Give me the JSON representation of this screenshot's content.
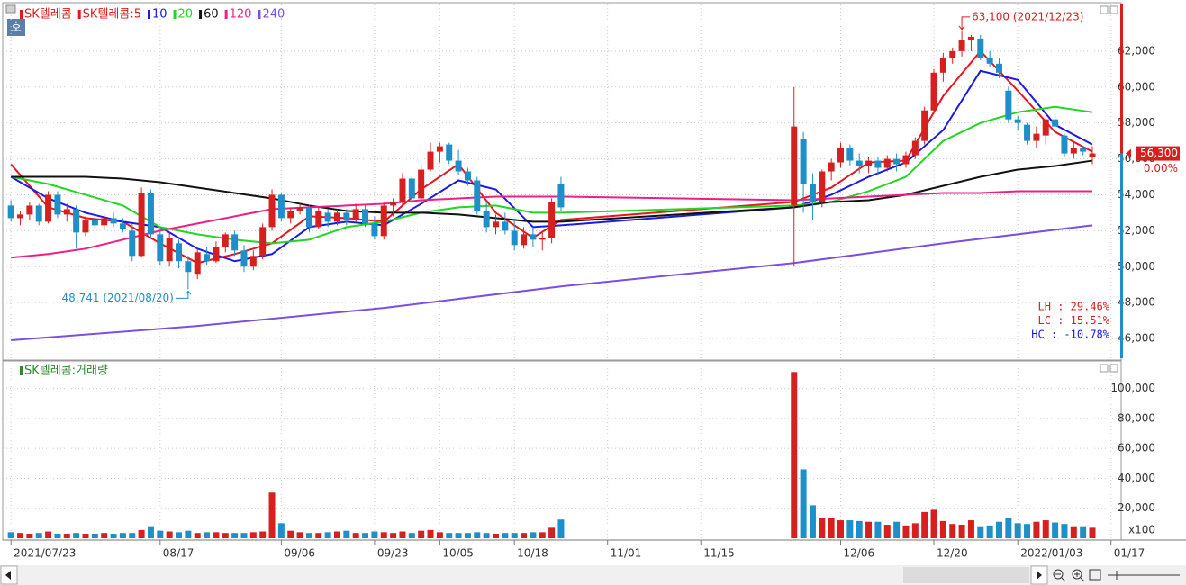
{
  "corner_label": "호",
  "chart_data": [
    {
      "type": "candlestick",
      "name": "SK텔레콤",
      "up_color": "#d62020",
      "down_color": "#1e8fc8",
      "x": [
        0,
        1,
        2,
        3,
        4,
        5,
        6,
        7,
        8,
        9,
        10,
        11,
        12,
        13,
        14,
        15,
        16,
        17,
        18,
        19,
        20,
        21,
        22,
        23,
        24,
        25,
        26,
        27,
        28,
        29,
        30,
        31,
        32,
        33,
        34,
        35,
        36,
        37,
        38,
        39,
        40,
        41,
        42,
        43,
        44,
        45,
        46,
        47,
        48,
        49,
        50,
        51,
        52,
        53,
        54,
        55,
        56,
        57,
        58,
        59,
        84,
        85,
        86,
        87,
        88,
        89,
        90,
        91,
        92,
        93,
        94,
        95,
        96,
        97,
        98,
        99,
        100,
        101,
        102,
        103,
        104,
        105,
        106,
        107,
        108,
        109,
        110,
        111,
        112,
        113,
        114,
        115,
        116
      ],
      "open": [
        53400,
        52700,
        52900,
        53400,
        52500,
        54000,
        52900,
        53200,
        51900,
        52600,
        52300,
        52700,
        52400,
        52000,
        50600,
        54100,
        51800,
        50300,
        51300,
        50300,
        49600,
        50700,
        50300,
        51100,
        51800,
        50900,
        50000,
        50600,
        52200,
        54000,
        52700,
        53100,
        53300,
        52200,
        53000,
        52500,
        53000,
        52600,
        53200,
        52400,
        51700,
        53400,
        53600,
        54900,
        53800,
        55400,
        56400,
        56800,
        55900,
        55300,
        54800,
        53100,
        52200,
        52500,
        52000,
        51200,
        51800,
        51500,
        51600,
        54600,
        53400,
        57100,
        54600,
        53600,
        55300,
        55800,
        56600,
        55900,
        55600,
        55900,
        55500,
        56000,
        55700,
        56200,
        57000,
        58700,
        60800,
        61600,
        62000,
        62600,
        62700,
        61600,
        61300,
        59800,
        58200,
        57900,
        57000,
        57300,
        58200,
        57300,
        56300,
        56600,
        56100
      ],
      "high": [
        53700,
        53100,
        53600,
        53500,
        54200,
        54200,
        53500,
        53400,
        52800,
        53000,
        52900,
        53000,
        52700,
        52400,
        54400,
        54300,
        52100,
        51900,
        51500,
        50600,
        51000,
        51100,
        51400,
        51900,
        52000,
        51200,
        50900,
        52400,
        54300,
        54100,
        53300,
        53500,
        53400,
        53300,
        53200,
        53200,
        53200,
        53500,
        53400,
        52800,
        53600,
        53800,
        55200,
        55000,
        55700,
        56900,
        56900,
        56900,
        56500,
        55500,
        55000,
        53600,
        52900,
        53000,
        52600,
        52200,
        52200,
        52000,
        53800,
        55000,
        60000,
        57500,
        55200,
        55400,
        56000,
        56900,
        56800,
        56300,
        56100,
        56100,
        56200,
        56300,
        56400,
        57200,
        58900,
        61000,
        61900,
        62200,
        63100,
        62900,
        62900,
        62000,
        61600,
        60000,
        58400,
        58000,
        57800,
        58300,
        58500,
        57400,
        56900,
        56700,
        56700
      ],
      "low": [
        52500,
        52300,
        52600,
        52300,
        52400,
        52700,
        52500,
        51000,
        51700,
        52100,
        52000,
        52200,
        51900,
        50300,
        50500,
        51600,
        50100,
        50000,
        49900,
        48741,
        49300,
        50100,
        50200,
        50800,
        50600,
        49700,
        49800,
        50400,
        52000,
        52500,
        52400,
        52900,
        51900,
        52100,
        52200,
        52300,
        52300,
        52500,
        52200,
        51500,
        51500,
        52800,
        53400,
        53500,
        53600,
        55300,
        55800,
        55700,
        55100,
        54500,
        52900,
        51900,
        51800,
        51800,
        50900,
        51000,
        51100,
        50900,
        51300,
        53100,
        50000,
        53000,
        52600,
        53300,
        54800,
        55500,
        55600,
        55200,
        55200,
        55100,
        55300,
        55300,
        55500,
        56000,
        56800,
        58500,
        60300,
        61300,
        61700,
        62000,
        61500,
        61100,
        60500,
        58000,
        57600,
        56800,
        56600,
        56800,
        57500,
        56100,
        56000,
        56200,
        55700
      ],
      "close": [
        52700,
        52900,
        53400,
        52500,
        54000,
        52900,
        53200,
        51900,
        52600,
        52300,
        52700,
        52400,
        52100,
        50600,
        54100,
        51800,
        50300,
        51600,
        50300,
        49700,
        50800,
        50300,
        51100,
        51800,
        50900,
        50000,
        50600,
        52200,
        54000,
        52700,
        53100,
        53300,
        52200,
        53100,
        52500,
        53000,
        52600,
        53200,
        52400,
        51700,
        53400,
        53600,
        54900,
        53800,
        55400,
        56400,
        56700,
        55900,
        55300,
        54800,
        53100,
        52200,
        52500,
        52000,
        51200,
        51800,
        51500,
        51600,
        53600,
        53300,
        57800,
        54600,
        53600,
        55300,
        55800,
        56600,
        55900,
        55600,
        55900,
        55500,
        56000,
        55700,
        56200,
        57000,
        58700,
        60800,
        61600,
        62000,
        62600,
        62800,
        61600,
        61300,
        60800,
        58200,
        58000,
        57000,
        57400,
        58200,
        57800,
        56300,
        56600,
        56400,
        56300
      ],
      "xlim": [
        -0.5,
        118.8
      ],
      "ylim": [
        44900,
        64600
      ],
      "yticks": [
        {
          "value": 46000,
          "label": "46,000"
        },
        {
          "value": 48000,
          "label": "48,000"
        },
        {
          "value": 50000,
          "label": "50,000"
        },
        {
          "value": 52000,
          "label": "52,000"
        },
        {
          "value": 54000,
          "label": "54,000"
        },
        {
          "value": 56000,
          "label": "56,000"
        },
        {
          "value": 58000,
          "label": "58,000"
        },
        {
          "value": 60000,
          "label": "60,000"
        },
        {
          "value": 62000,
          "label": "62,000"
        }
      ],
      "grid": true,
      "series": [
        {
          "name": "SK텔레콤:5",
          "color": "#e8151b",
          "x": [
            0,
            4,
            8,
            12,
            16,
            20,
            24,
            28,
            32,
            36,
            40,
            44,
            48,
            52,
            56,
            59,
            84,
            88,
            92,
            96,
            100,
            104,
            108,
            112,
            116
          ],
          "values": [
            55700,
            53300,
            52700,
            52500,
            51300,
            50200,
            50700,
            51300,
            52800,
            52700,
            52500,
            54300,
            55700,
            53000,
            51600,
            52600,
            53600,
            54400,
            55800,
            55900,
            59500,
            62000,
            59800,
            57500,
            56400
          ]
        },
        {
          "name": "10",
          "color": "#1a1ae6",
          "x": [
            0,
            4,
            8,
            12,
            16,
            20,
            24,
            28,
            32,
            36,
            40,
            44,
            48,
            52,
            56,
            59,
            84,
            88,
            92,
            96,
            100,
            104,
            108,
            112,
            116
          ],
          "values": [
            55000,
            53800,
            53000,
            52500,
            52200,
            51000,
            50300,
            50700,
            52200,
            52500,
            52300,
            53500,
            54800,
            54300,
            52200,
            52300,
            53300,
            54000,
            55000,
            55800,
            57600,
            60900,
            60400,
            57900,
            56800
          ]
        },
        {
          "name": "20",
          "color": "#22d622",
          "x": [
            0,
            4,
            8,
            12,
            16,
            20,
            24,
            28,
            32,
            36,
            40,
            44,
            48,
            52,
            56,
            59,
            84,
            88,
            92,
            96,
            100,
            104,
            108,
            112,
            116
          ],
          "values": [
            55000,
            54600,
            54000,
            53400,
            52200,
            51800,
            51500,
            51300,
            51500,
            52200,
            52500,
            53000,
            53300,
            53400,
            53000,
            53000,
            53400,
            53600,
            54200,
            55000,
            57000,
            58000,
            58600,
            58900,
            58600
          ]
        },
        {
          "name": "60",
          "color": "#111111",
          "x": [
            0,
            4,
            8,
            12,
            16,
            20,
            24,
            28,
            32,
            36,
            40,
            44,
            48,
            52,
            56,
            59,
            84,
            88,
            92,
            96,
            100,
            104,
            108,
            112,
            116
          ],
          "values": [
            55000,
            55000,
            55000,
            54900,
            54700,
            54400,
            54100,
            53800,
            53400,
            53100,
            53000,
            53000,
            52900,
            52700,
            52500,
            52500,
            53300,
            53600,
            53700,
            54000,
            54500,
            55000,
            55400,
            55600,
            55900
          ]
        },
        {
          "name": "120",
          "color": "#ec1f86",
          "x": [
            0,
            4,
            8,
            12,
            16,
            20,
            24,
            28,
            32,
            36,
            40,
            44,
            48,
            52,
            56,
            59,
            84,
            88,
            92,
            96,
            100,
            104,
            108,
            112,
            116
          ],
          "values": [
            50500,
            50700,
            51000,
            51500,
            52000,
            52400,
            52800,
            53200,
            53300,
            53400,
            53500,
            53700,
            53800,
            53900,
            53900,
            53900,
            53700,
            53800,
            53900,
            54000,
            54100,
            54100,
            54200,
            54200,
            54200
          ]
        },
        {
          "name": "240",
          "color": "#7b4fe0",
          "x": [
            0,
            20,
            40,
            59,
            84,
            100,
            116
          ],
          "values": [
            45900,
            46700,
            47700,
            48900,
            50200,
            51300,
            52300
          ]
        }
      ],
      "annotations": [
        {
          "x": 102,
          "value": 63100,
          "label": "63,100 (2021/12/23)"
        },
        {
          "x": 19,
          "value": 48741,
          "label": "48,741 (2021/08/20)"
        }
      ],
      "last_price": {
        "value": 56300,
        "label": "56,300"
      },
      "change_label": "0.00%",
      "stats": [
        "LH :  29.46%",
        "LC :  15.51%",
        "HC : -10.78%"
      ]
    },
    {
      "type": "bar",
      "unit_label": "x100",
      "x": [
        0,
        1,
        2,
        3,
        4,
        5,
        6,
        7,
        8,
        9,
        10,
        11,
        12,
        13,
        14,
        15,
        16,
        17,
        18,
        19,
        20,
        21,
        22,
        23,
        24,
        25,
        26,
        27,
        28,
        29,
        30,
        31,
        32,
        33,
        34,
        35,
        36,
        37,
        38,
        39,
        40,
        41,
        42,
        43,
        44,
        45,
        46,
        47,
        48,
        49,
        50,
        51,
        52,
        53,
        54,
        55,
        56,
        57,
        58,
        59,
        84,
        85,
        86,
        87,
        88,
        89,
        90,
        91,
        92,
        93,
        94,
        95,
        96,
        97,
        98,
        99,
        100,
        101,
        102,
        103,
        104,
        105,
        106,
        107,
        108,
        109,
        110,
        111,
        112,
        113,
        114,
        115,
        116
      ],
      "series": [
        {
          "name": "SK텔레콤:거래량",
          "color": "#2e8b2e",
          "values": [
            4000,
            3500,
            3000,
            3500,
            4500,
            3000,
            3000,
            3500,
            3000,
            3000,
            3500,
            3000,
            3500,
            3500,
            5500,
            8000,
            5000,
            4500,
            4000,
            5000,
            3500,
            4000,
            4000,
            3500,
            3500,
            3500,
            4000,
            4500,
            30500,
            10000,
            5000,
            4000,
            3500,
            3500,
            4000,
            4500,
            5000,
            3500,
            3500,
            4500,
            4000,
            3500,
            4500,
            3500,
            5000,
            5500,
            4000,
            3500,
            3500,
            3500,
            4000,
            3500,
            3000,
            3500,
            3500,
            3500,
            4000,
            4000,
            7000,
            12500,
            111000,
            46000,
            22000,
            13500,
            13500,
            12000,
            12000,
            11500,
            11000,
            11000,
            9000,
            11000,
            8500,
            10000,
            17500,
            19000,
            11500,
            9500,
            9000,
            12000,
            8000,
            8500,
            11000,
            13500,
            10000,
            9500,
            11000,
            12000,
            10500,
            9500,
            8000,
            8000,
            7000
          ]
        }
      ],
      "xlim": [
        -0.5,
        118.8
      ],
      "ylim": [
        0,
        116000
      ],
      "yticks": [
        {
          "value": 20000,
          "label": "20,000"
        },
        {
          "value": 40000,
          "label": "40,000"
        },
        {
          "value": 60000,
          "label": "60,000"
        },
        {
          "value": 80000,
          "label": "80,000"
        },
        {
          "value": 100000,
          "label": "100,000"
        }
      ],
      "xticks": [
        {
          "value": 0,
          "label": "2021/07/23"
        },
        {
          "value": 16,
          "label": "08/17"
        },
        {
          "value": 29,
          "label": "09/06"
        },
        {
          "value": 39,
          "label": "09/23"
        },
        {
          "value": 46,
          "label": "10/05"
        },
        {
          "value": 54,
          "label": "10/18"
        },
        {
          "value": 64,
          "label": "11/01"
        },
        {
          "value": 74,
          "label": "11/15"
        },
        {
          "value": 89,
          "label": "12/06"
        },
        {
          "value": 99,
          "label": "12/20"
        },
        {
          "value": 108,
          "label": "2022/01/03"
        },
        {
          "value": 118,
          "label": "01/17"
        }
      ],
      "grid": true
    }
  ]
}
